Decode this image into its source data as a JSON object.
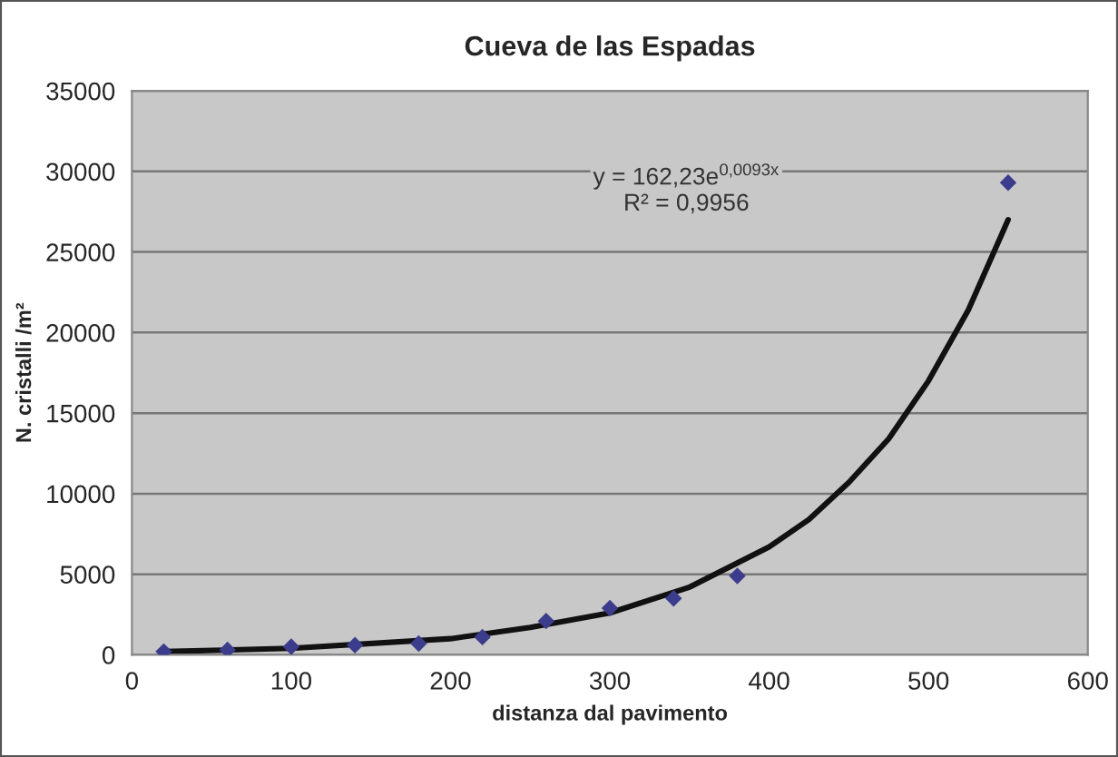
{
  "chart_data": {
    "type": "scatter",
    "title": "Cueva de las Espadas",
    "xlabel": "distanza dal pavimento",
    "ylabel": "N. cristalli /m²",
    "series": [
      {
        "color": "#3c3c8c",
        "marker": "diamond",
        "x": [
          20,
          60,
          100,
          140,
          180,
          220,
          260,
          300,
          340,
          380,
          550
        ],
        "values": [
          200,
          300,
          500,
          600,
          700,
          1100,
          2100,
          2900,
          3500,
          4900,
          29300
        ]
      },
      {
        "type": "line",
        "color": "#111111",
        "marker": "none",
        "line_style": "solid",
        "x": [
          20,
          100,
          200,
          250,
          300,
          350,
          400,
          425,
          450,
          475,
          500,
          525,
          550
        ],
        "values": [
          200,
          400,
          1000,
          1700,
          2600,
          4200,
          6700,
          8400,
          10700,
          13400,
          17000,
          21400,
          27000
        ]
      }
    ],
    "annotations": [
      "y = 162,23e$^{0,0093x}$\nR² = 0,9956"
    ],
    "xlim": [
      0,
      600
    ],
    "ylim": [
      0,
      35000
    ],
    "xticks": [
      0,
      100,
      200,
      300,
      400,
      500,
      600
    ],
    "yticks": [
      0,
      5000,
      10000,
      15000,
      20000,
      25000,
      30000,
      35000
    ],
    "grid": "y",
    "legend": false
  }
}
